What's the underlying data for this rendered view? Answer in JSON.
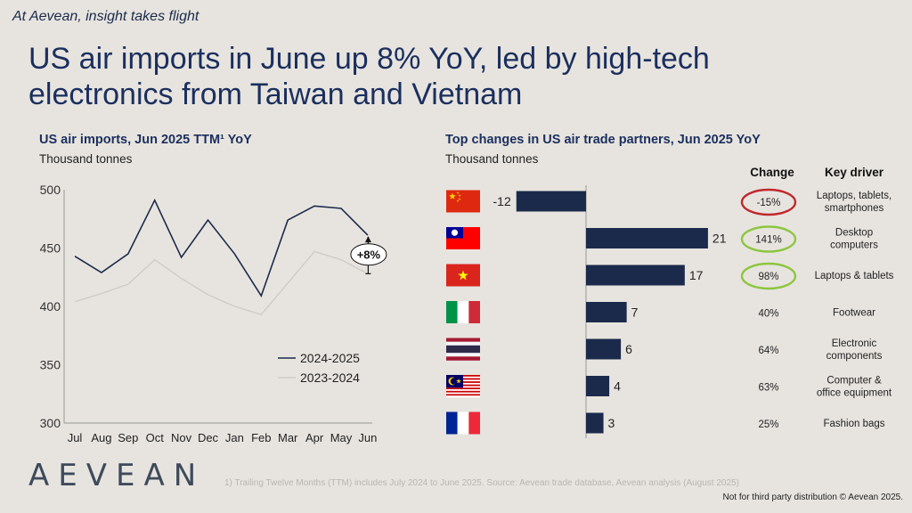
{
  "header": {
    "tagline": "At Aevean, insight takes flight",
    "headline": "US air imports in June up 8% YoY, led by high-tech electronics from Taiwan and Vietnam"
  },
  "left_panel": {
    "title": "US air imports, Jun 2025 TTM¹ YoY",
    "unit": "Thousand tonnes",
    "growth_badge": "+8%"
  },
  "right_panel": {
    "title": "Top changes in US air trade partners, Jun 2025 YoY",
    "unit": "Thousand tonnes",
    "change_header": "Change",
    "driver_header": "Key driver"
  },
  "footer": {
    "footnote": "1) Trailing Twelve Months (TTM) includes July 2024 to June 2025. Source: Aevean trade database, Aevean analysis (August 2025)",
    "rights": "Not for third party distribution © Aevean 2025.",
    "logo": "AEVEAN"
  },
  "colors": {
    "navy": "#1b2a4a",
    "grey_line": "#cfccc7",
    "ring_red": "#c0282d",
    "ring_green": "#8dc63f"
  },
  "chart_data": [
    {
      "type": "line",
      "title": "US air imports, Jun 2025 TTM¹ YoY",
      "ylabel": "Thousand tonnes",
      "categories": [
        "Jul",
        "Aug",
        "Sep",
        "Oct",
        "Nov",
        "Dec",
        "Jan",
        "Feb",
        "Mar",
        "Apr",
        "May",
        "Jun"
      ],
      "yticks": [
        300,
        350,
        400,
        450,
        500
      ],
      "ylim": [
        300,
        500
      ],
      "legend_position": "bottom-right",
      "series": [
        {
          "name": "2024-2025",
          "color": "#1b2a4a",
          "values": [
            443,
            429,
            445,
            491,
            442,
            474,
            445,
            409,
            474,
            486,
            484,
            461
          ]
        },
        {
          "name": "2023-2024",
          "color": "#cfccc7",
          "values": [
            404,
            411,
            419,
            440,
            424,
            410,
            400,
            393,
            420,
            447,
            440,
            428
          ]
        }
      ]
    },
    {
      "type": "bar",
      "orientation": "horizontal",
      "title": "Top changes in US air trade partners, Jun 2025 YoY",
      "ylabel": "Thousand tonnes",
      "categories": [
        "China",
        "Taiwan",
        "Vietnam",
        "Italy",
        "Thailand",
        "Malaysia",
        "France"
      ],
      "values": [
        -12,
        21,
        17,
        7,
        6,
        4,
        3
      ],
      "labels": [
        "-12",
        "21",
        "17",
        "7",
        "6",
        "4",
        "3"
      ],
      "change": [
        "-15%",
        "141%",
        "98%",
        "40%",
        "64%",
        "63%",
        "25%"
      ],
      "change_highlight": [
        "red",
        "green",
        "green",
        "none",
        "none",
        "none",
        "none"
      ],
      "key_driver": [
        [
          "Laptops, tablets,",
          "smartphones"
        ],
        [
          "Desktop",
          "computers"
        ],
        [
          "Laptops & tablets"
        ],
        [
          "Footwear"
        ],
        [
          "Electronic",
          "components"
        ],
        [
          "Computer &",
          "office equipment"
        ],
        [
          "Fashion bags"
        ]
      ]
    }
  ]
}
